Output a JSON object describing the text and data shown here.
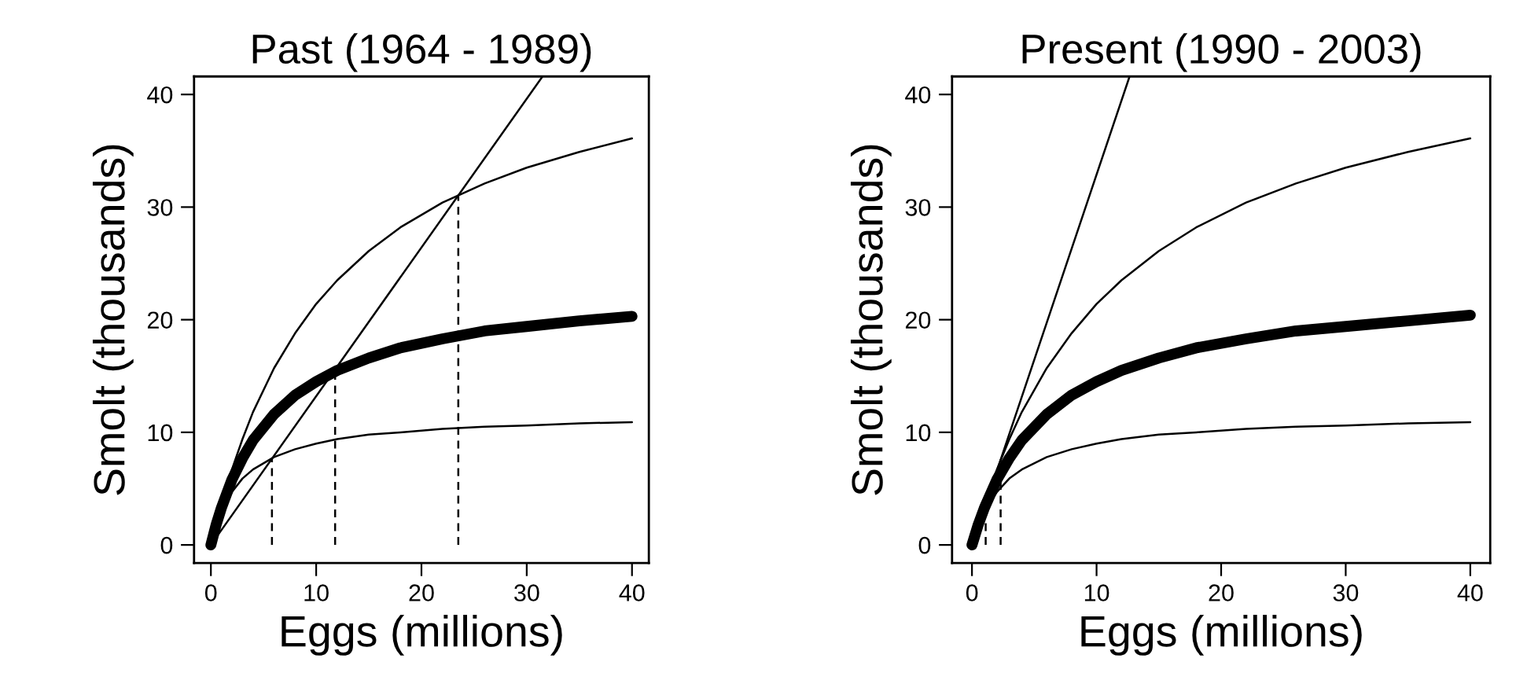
{
  "chart_data": [
    {
      "type": "line",
      "title": "Past (1964 - 1989)",
      "xlabel": "Eggs (millions)",
      "ylabel": "Smolt (thousands)",
      "xlim": [
        -1.6,
        41.6
      ],
      "ylim": [
        -1.6,
        41.6
      ],
      "xticks": [
        0,
        10,
        20,
        30,
        40
      ],
      "yticks": [
        0,
        10,
        20,
        30,
        40
      ],
      "grid": false,
      "legend": false,
      "series": [
        {
          "color": "#000000",
          "line_style": "solid",
          "x": [
            0,
            0.5,
            1,
            2,
            3,
            4,
            6,
            8,
            10,
            12,
            15,
            18,
            22,
            26,
            30,
            35,
            40
          ],
          "values": [
            0,
            1.9,
            3.6,
            6.7,
            9.4,
            11.8,
            15.7,
            18.8,
            21.4,
            23.5,
            26.1,
            28.2,
            30.4,
            32.1,
            33.5,
            34.9,
            36.1
          ]
        },
        {
          "color": "#000000",
          "line_style": "solid",
          "x": [
            0,
            0.5,
            1,
            2,
            3,
            4,
            6,
            8,
            10,
            12,
            15,
            18,
            22,
            26,
            30,
            35,
            40
          ],
          "values": [
            0,
            1.8,
            3.3,
            5.8,
            7.7,
            9.3,
            11.6,
            13.3,
            14.5,
            15.5,
            16.6,
            17.5,
            18.3,
            19.0,
            19.4,
            19.9,
            20.3
          ]
        },
        {
          "color": "#000000",
          "line_style": "solid",
          "x": [
            0,
            0.5,
            1,
            2,
            3,
            4,
            6,
            8,
            10,
            12,
            15,
            18,
            22,
            26,
            30,
            35,
            40
          ],
          "values": [
            0,
            1.7,
            3.0,
            4.7,
            5.9,
            6.7,
            7.8,
            8.5,
            9.0,
            9.4,
            9.8,
            10.0,
            10.3,
            10.5,
            10.6,
            10.8,
            10.9
          ]
        },
        {
          "color": "#000000",
          "line_style": "solid",
          "x": [
            0,
            31.5
          ],
          "values": [
            0,
            41.6
          ]
        },
        {
          "color": "#000000",
          "line_style": "dashed",
          "x": [
            5.8,
            5.8
          ],
          "values": [
            0,
            7.7
          ]
        },
        {
          "color": "#000000",
          "line_style": "dashed",
          "x": [
            11.8,
            11.8
          ],
          "values": [
            0,
            15.5
          ]
        },
        {
          "color": "#000000",
          "line_style": "dashed",
          "x": [
            23.5,
            23.5
          ],
          "values": [
            0,
            31.1
          ]
        }
      ]
    },
    {
      "type": "line",
      "title": "Present (1990 - 2003)",
      "xlabel": "Eggs (millions)",
      "ylabel": "Smolt (thousands)",
      "xlim": [
        -1.6,
        41.6
      ],
      "ylim": [
        -1.6,
        41.6
      ],
      "xticks": [
        0,
        10,
        20,
        30,
        40
      ],
      "yticks": [
        0,
        10,
        20,
        30,
        40
      ],
      "grid": false,
      "legend": false,
      "series": [
        {
          "color": "#000000",
          "line_style": "solid",
          "x": [
            0,
            0.5,
            1,
            2,
            3,
            4,
            6,
            8,
            10,
            12,
            15,
            18,
            22,
            26,
            30,
            35,
            40
          ],
          "values": [
            0,
            1.9,
            3.6,
            6.7,
            9.4,
            11.8,
            15.7,
            18.8,
            21.4,
            23.5,
            26.1,
            28.2,
            30.4,
            32.1,
            33.5,
            34.9,
            36.1
          ]
        },
        {
          "color": "#000000",
          "line_style": "solid",
          "x": [
            0,
            0.5,
            1,
            2,
            3,
            4,
            6,
            8,
            10,
            12,
            15,
            18,
            22,
            26,
            30,
            35,
            40
          ],
          "values": [
            0,
            1.8,
            3.3,
            5.8,
            7.7,
            9.3,
            11.6,
            13.3,
            14.5,
            15.5,
            16.6,
            17.5,
            18.3,
            19.0,
            19.4,
            19.9,
            20.4
          ]
        },
        {
          "color": "#000000",
          "line_style": "solid",
          "x": [
            0,
            0.5,
            1,
            2,
            3,
            4,
            6,
            8,
            10,
            12,
            15,
            18,
            22,
            26,
            30,
            35,
            40
          ],
          "values": [
            0,
            1.7,
            3.0,
            4.7,
            5.9,
            6.7,
            7.8,
            8.5,
            9.0,
            9.4,
            9.8,
            10.0,
            10.3,
            10.5,
            10.6,
            10.8,
            10.9
          ]
        },
        {
          "color": "#000000",
          "line_style": "solid",
          "x": [
            0,
            12.65
          ],
          "values": [
            0,
            41.6
          ]
        },
        {
          "color": "#000000",
          "line_style": "dashed",
          "x": [
            1.1,
            1.1
          ],
          "values": [
            0,
            3.6
          ]
        },
        {
          "color": "#000000",
          "line_style": "dashed",
          "x": [
            2.3,
            2.3
          ],
          "values": [
            0,
            7.6
          ]
        }
      ]
    }
  ]
}
